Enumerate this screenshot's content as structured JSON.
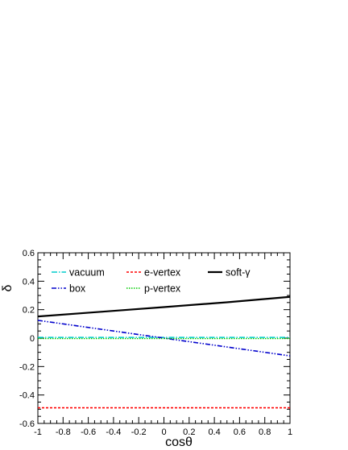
{
  "chart_data": {
    "type": "line",
    "xlabel": "cosθ",
    "ylabel": "δ",
    "xlim": [
      -1,
      1
    ],
    "ylim": [
      -0.6,
      0.6
    ],
    "x_ticks": [
      -1,
      -0.8,
      -0.6,
      -0.4,
      -0.2,
      0,
      0.2,
      0.4,
      0.6,
      0.8,
      1
    ],
    "x_tick_labels": [
      "-1",
      "-0.8",
      "-0.6",
      "-0.4",
      "-0.2",
      "0",
      "0.2",
      "0.4",
      "0.6",
      "0.8",
      "1"
    ],
    "y_ticks": [
      -0.6,
      -0.4,
      -0.2,
      0,
      0.2,
      0.4,
      0.6
    ],
    "y_tick_labels": [
      "-0.6",
      "-0.4",
      "-0.2",
      "0",
      "0.2",
      "0.4",
      "0.6"
    ],
    "grid": false,
    "legend_position": "top",
    "series": [
      {
        "name": "vacuum",
        "color": "#00cccc",
        "dash": "dash-dot",
        "width": 1.6,
        "x": [
          -1,
          1
        ],
        "y": [
          0.005,
          0.005
        ]
      },
      {
        "name": "box",
        "color": "#0000cc",
        "dash": "dash-dot-dot",
        "width": 1.6,
        "x": [
          -1,
          0,
          1
        ],
        "y": [
          0.125,
          0.0,
          -0.125
        ]
      },
      {
        "name": "e-vertex",
        "color": "#ff0000",
        "dash": "dotted",
        "width": 1.6,
        "x": [
          -1,
          1
        ],
        "y": [
          -0.49,
          -0.49
        ]
      },
      {
        "name": "p-vertex",
        "color": "#00cc00",
        "dash": "dotted-fine",
        "width": 1.4,
        "x": [
          -1,
          1
        ],
        "y": [
          -0.003,
          -0.003
        ]
      },
      {
        "name": "soft-γ",
        "color": "#000000",
        "dash": "solid",
        "width": 2.2,
        "x": [
          -1,
          -0.5,
          0,
          0.5,
          1
        ],
        "y": [
          0.152,
          0.185,
          0.218,
          0.252,
          0.29
        ]
      }
    ]
  }
}
